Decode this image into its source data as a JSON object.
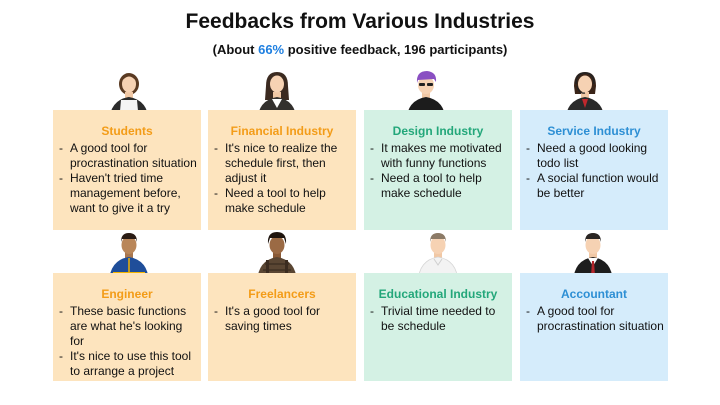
{
  "title": "Feedbacks from Various Industries",
  "subtitle": {
    "prefix": "(About ",
    "percent": "66%",
    "suffix": " positive feedback, 196 participants)"
  },
  "colors": {
    "accent_blue": "#1e7fe0",
    "orange_bg": "#fde4be",
    "orange_text": "#f39c18",
    "green_bg": "#d4f1e4",
    "green_text": "#23a77a",
    "blue_bg": "#d5ecfb",
    "blue_text": "#2d8fd4"
  },
  "cards": [
    {
      "title": "Students",
      "icon": "student-woman-icon",
      "items": [
        "A good tool for procrastination situation",
        "Haven't tried time management before, want to give it a try"
      ]
    },
    {
      "title": "Financial Industry",
      "icon": "businesswoman-icon",
      "items": [
        "It's nice to realize the schedule first, then adjust it",
        "Need a tool to help make schedule"
      ]
    },
    {
      "title": "Design Industry",
      "icon": "designer-purple-hair-icon",
      "items": [
        "It makes me motivated with funny functions",
        "Need a tool to help make schedule"
      ]
    },
    {
      "title": "Service Industry",
      "icon": "operator-headset-icon",
      "items": [
        "Need a good looking todo list",
        "A social function would be better"
      ]
    },
    {
      "title": "Engineer",
      "icon": "engineer-man-icon",
      "items": [
        "These basic functions are what he's looking for",
        "It's nice to use this tool to arrange a project"
      ]
    },
    {
      "title": "Freelancers",
      "icon": "freelancer-man-icon",
      "items": [
        "It's a good tool for saving times"
      ]
    },
    {
      "title": "Educational Industry",
      "icon": "educator-man-icon",
      "items": [
        "Trivial time needed to be schedule"
      ]
    },
    {
      "title": "Accountant",
      "icon": "accountant-man-icon",
      "items": [
        "A good tool for procrastination situation"
      ]
    }
  ]
}
